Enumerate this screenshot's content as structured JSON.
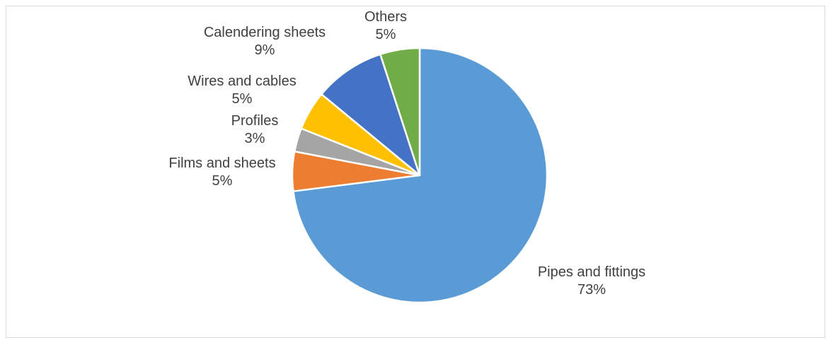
{
  "chart_data": {
    "type": "pie",
    "title": "",
    "categories": [
      "Pipes and fittings",
      "Films and sheets",
      "Profiles",
      "Wires and cables",
      "Calendering sheets",
      "Others"
    ],
    "values": [
      73,
      5,
      3,
      5,
      9,
      5
    ],
    "labels": [
      "73%",
      "5%",
      "3%",
      "5%",
      "9%",
      "5%"
    ],
    "colors": [
      "#5B9BD5",
      "#ED7D31",
      "#A5A5A5",
      "#FFC000",
      "#4472C4",
      "#70AD47"
    ],
    "legend": "none",
    "start": "12 o'clock",
    "direction": "clockwise"
  }
}
